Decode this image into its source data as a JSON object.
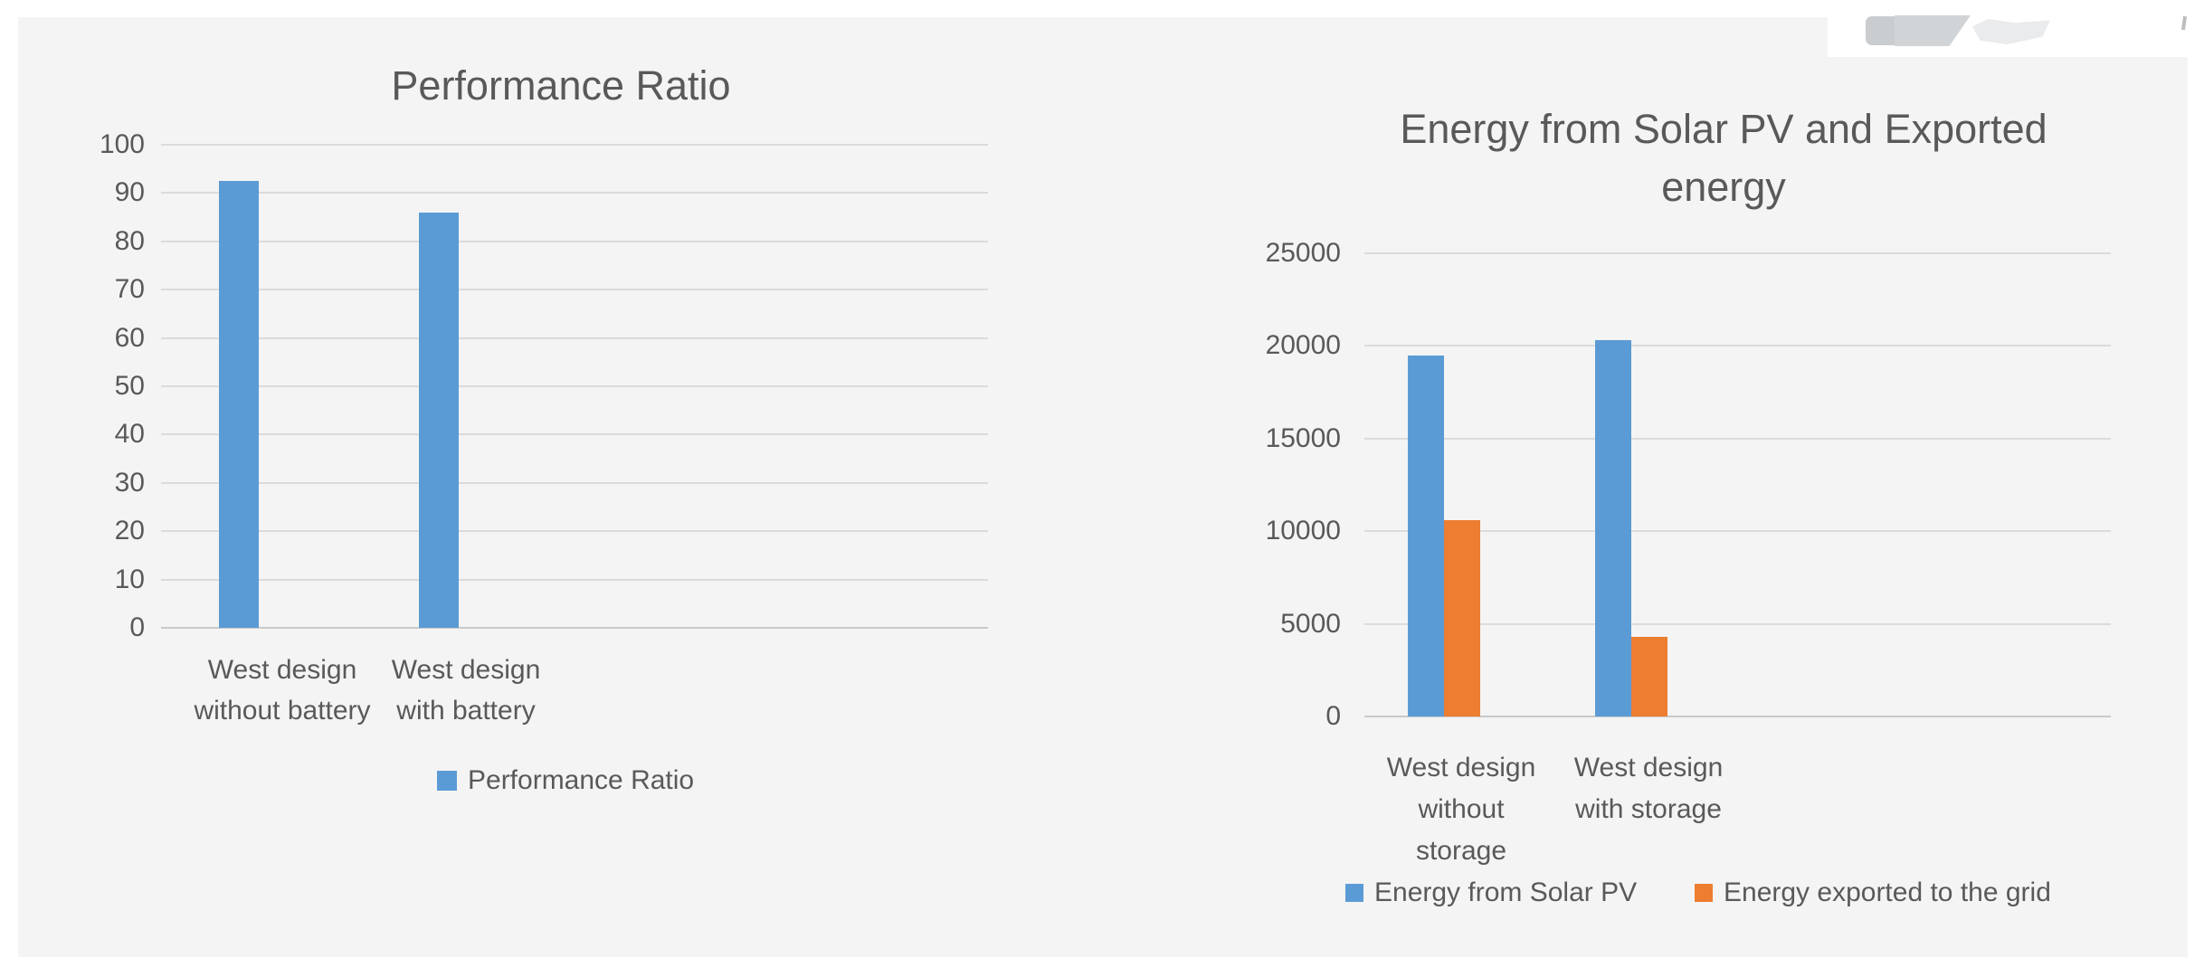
{
  "page": {
    "panel_color": "#f4f4f4",
    "background_color": "#ffffff",
    "text_color": "#595959",
    "gridline_color": "#dbdbdb"
  },
  "chart_data": [
    {
      "type": "bar",
      "title": "Performance Ratio",
      "categories": [
        [
          "West design",
          "without battery"
        ],
        [
          "West design",
          "with battery"
        ]
      ],
      "series": [
        {
          "name": "Performance Ratio",
          "color": "#5b9bd5",
          "values": [
            92.5,
            86
          ]
        }
      ],
      "ylim": [
        0,
        100
      ],
      "y_ticks": [
        0,
        10,
        20,
        30,
        40,
        50,
        60,
        70,
        80,
        90,
        100
      ],
      "grid": true,
      "legend_position": "bottom"
    },
    {
      "type": "bar",
      "title": "Energy from Solar PV and Exported energy",
      "categories": [
        [
          "West design",
          "without",
          "storage"
        ],
        [
          "West design",
          "with storage"
        ]
      ],
      "series": [
        {
          "name": "Energy from Solar PV",
          "color": "#5b9bd5",
          "values": [
            19500,
            20300
          ]
        },
        {
          "name": "Energy exported to the grid",
          "color": "#ed7d31",
          "values": [
            10600,
            4300
          ]
        }
      ],
      "ylim": [
        0,
        25000
      ],
      "y_ticks": [
        0,
        5000,
        10000,
        15000,
        20000,
        25000
      ],
      "grid": true,
      "legend_position": "bottom"
    }
  ]
}
